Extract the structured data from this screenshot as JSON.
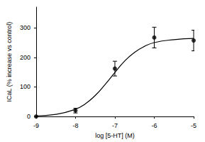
{
  "chart_data": {
    "type": "scatter",
    "x_label": "log [5-HT] (M)",
    "y_label": "ICaL (% increase vs control)",
    "xlim": [
      -9,
      -5
    ],
    "xticks": [
      -9,
      -8,
      -7,
      -6,
      -5
    ],
    "ylim": [
      0,
      370
    ],
    "yticks": [
      0,
      100,
      200,
      300
    ],
    "grid": false,
    "series": [
      {
        "type": "scatter",
        "color": "#000000",
        "marker": "circle",
        "x": [
          -9,
          -8,
          -7,
          -6,
          -5
        ],
        "values": [
          0,
          20,
          162,
          267,
          257
        ],
        "error": [
          0,
          8,
          25,
          35,
          35
        ]
      },
      {
        "type": "line",
        "color": "#000000",
        "line_style": "solid",
        "x": [
          -9,
          -8.5,
          -8,
          -7.75,
          -7.5,
          -7.25,
          -7,
          -6.75,
          -6.5,
          -6.25,
          -6,
          -5.5,
          -5
        ],
        "values": [
          2,
          7,
          25,
          43,
          71,
          108,
          149,
          188,
          217,
          237,
          250,
          260,
          264
        ]
      }
    ]
  }
}
